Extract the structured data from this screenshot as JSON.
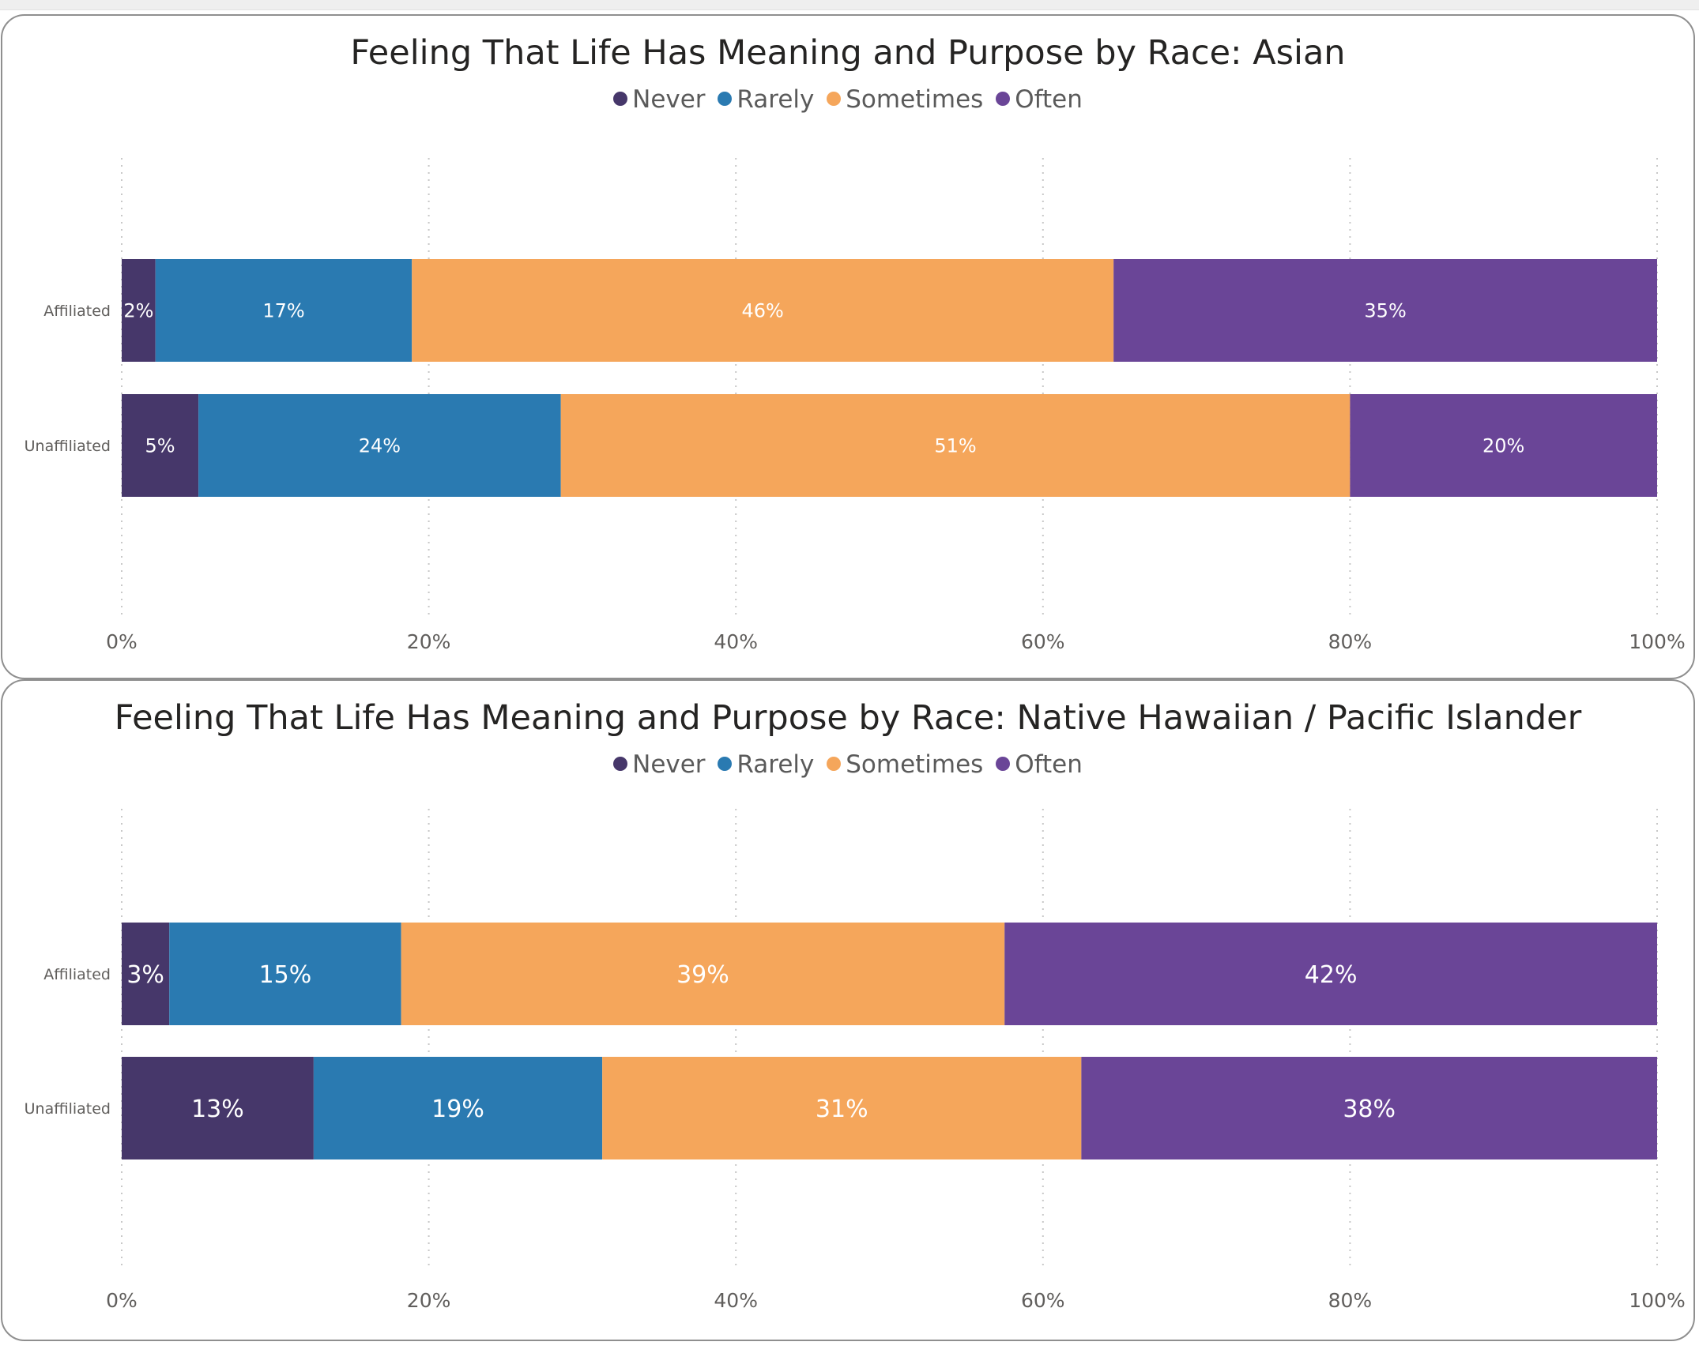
{
  "legend": [
    {
      "label": "Never",
      "color": "#46376a"
    },
    {
      "label": "Rarely",
      "color": "#2a7ab1"
    },
    {
      "label": "Sometimes",
      "color": "#f5a65b"
    },
    {
      "label": "Often",
      "color": "#6a4597"
    }
  ],
  "chart_data": [
    {
      "type": "bar",
      "orientation": "horizontal",
      "stacked": "100%",
      "title": "Feeling That Life Has Meaning and Purpose by Race: Asian",
      "categories": [
        "Affiliated",
        "Unaffiliated"
      ],
      "series": [
        {
          "name": "Never",
          "color": "#46376a",
          "values": [
            2.2,
            5
          ],
          "labels": [
            "2%",
            "5%"
          ]
        },
        {
          "name": "Rarely",
          "color": "#2a7ab1",
          "values": [
            16.7,
            23.6
          ],
          "labels": [
            "17%",
            "24%"
          ]
        },
        {
          "name": "Sometimes",
          "color": "#f5a65b",
          "values": [
            45.7,
            51.4
          ],
          "labels": [
            "46%",
            "51%"
          ]
        },
        {
          "name": "Often",
          "color": "#6a4597",
          "values": [
            35.4,
            20
          ],
          "labels": [
            "35%",
            "20%"
          ]
        }
      ],
      "x_ticks": [
        "0%",
        "20%",
        "40%",
        "60%",
        "80%",
        "100%"
      ],
      "xlim": [
        0,
        100
      ],
      "grid": "vertical dotted",
      "legend_position": "top-center"
    },
    {
      "type": "bar",
      "orientation": "horizontal",
      "stacked": "100%",
      "title": "Feeling That Life Has Meaning and Purpose by Race: Native Hawaiian / Pacific Islander",
      "categories": [
        "Affiliated",
        "Unaffiliated"
      ],
      "series": [
        {
          "name": "Never",
          "color": "#46376a",
          "values": [
            3.1,
            12.5
          ],
          "labels": [
            "3%",
            "13%"
          ]
        },
        {
          "name": "Rarely",
          "color": "#2a7ab1",
          "values": [
            15.1,
            18.8
          ],
          "labels": [
            "15%",
            "19%"
          ]
        },
        {
          "name": "Sometimes",
          "color": "#f5a65b",
          "values": [
            39.3,
            31.2
          ],
          "labels": [
            "39%",
            "31%"
          ]
        },
        {
          "name": "Often",
          "color": "#6a4597",
          "values": [
            42.5,
            37.5
          ],
          "labels": [
            "42%",
            "38%"
          ]
        }
      ],
      "x_ticks": [
        "0%",
        "20%",
        "40%",
        "60%",
        "80%",
        "100%"
      ],
      "xlim": [
        0,
        100
      ],
      "grid": "vertical dotted",
      "legend_position": "top-center"
    }
  ]
}
